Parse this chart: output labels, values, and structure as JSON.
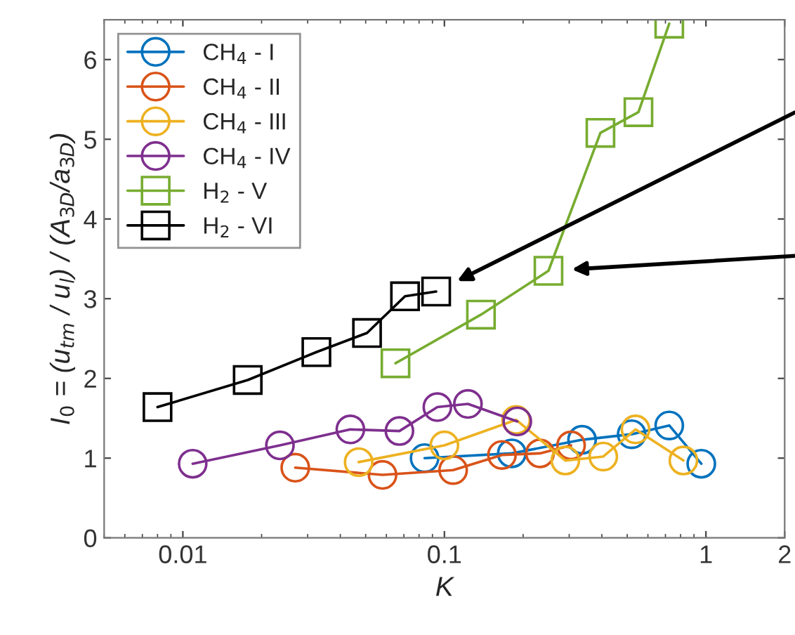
{
  "chart_data": {
    "type": "line",
    "xlabel": "K",
    "ylabel": "I$_{0}$ = (u$_{tm}$ / u$_{l}$) / (A$_{3D}$/a$_{3D}$)",
    "log": "x",
    "xlim": [
      0.005,
      2
    ],
    "xticks": [
      0.01,
      0.1,
      1,
      2
    ],
    "ylim": [
      0,
      6.5
    ],
    "yticks": [
      0,
      1,
      2,
      3,
      4,
      5,
      6
    ],
    "grid": false,
    "legend": "top left",
    "line_style": "solid",
    "series": [
      {
        "name": "CH$_{4}$ - I",
        "color": "#0072bd",
        "marker": "circle",
        "x": [
          0.084,
          0.181,
          0.336,
          0.52,
          0.724,
          0.96
        ],
        "values": [
          1.0,
          1.06,
          1.23,
          1.3,
          1.41,
          0.93
        ]
      },
      {
        "name": "CH$_{4}$ - II",
        "color": "#d95319",
        "marker": "circle",
        "x": [
          0.0269,
          0.058,
          0.108,
          0.166,
          0.232,
          0.305
        ],
        "values": [
          0.88,
          0.79,
          0.85,
          1.04,
          1.06,
          1.16
        ]
      },
      {
        "name": "CH$_{4}$ - III",
        "color": "#edb120",
        "marker": "circle",
        "x": [
          0.047,
          0.1,
          0.188,
          0.29,
          0.405,
          0.538,
          0.82
        ],
        "values": [
          0.95,
          1.16,
          1.48,
          0.97,
          1.02,
          1.36,
          0.97
        ]
      },
      {
        "name": "CH$_{4}$ - IV",
        "color": "#7e2f8e",
        "marker": "circle",
        "x": [
          0.0109,
          0.0235,
          0.0437,
          0.0673,
          0.094,
          0.123,
          0.19
        ],
        "values": [
          0.93,
          1.16,
          1.36,
          1.34,
          1.64,
          1.68,
          1.46
        ]
      },
      {
        "name": "H$_{2}$ - V",
        "color": "#77ac30",
        "marker": "square",
        "x": [
          0.065,
          0.138,
          0.25,
          0.395,
          0.552,
          0.724
        ],
        "values": [
          2.19,
          2.8,
          3.35,
          5.08,
          5.34,
          6.45
        ]
      },
      {
        "name": "H$_{2}$ - VI",
        "color": "#000000",
        "marker": "square",
        "x": [
          0.008,
          0.0177,
          0.0324,
          0.0506,
          0.0707,
          0.093
        ],
        "values": [
          1.64,
          1.98,
          2.33,
          2.57,
          3.03,
          3.09
        ]
      }
    ]
  }
}
